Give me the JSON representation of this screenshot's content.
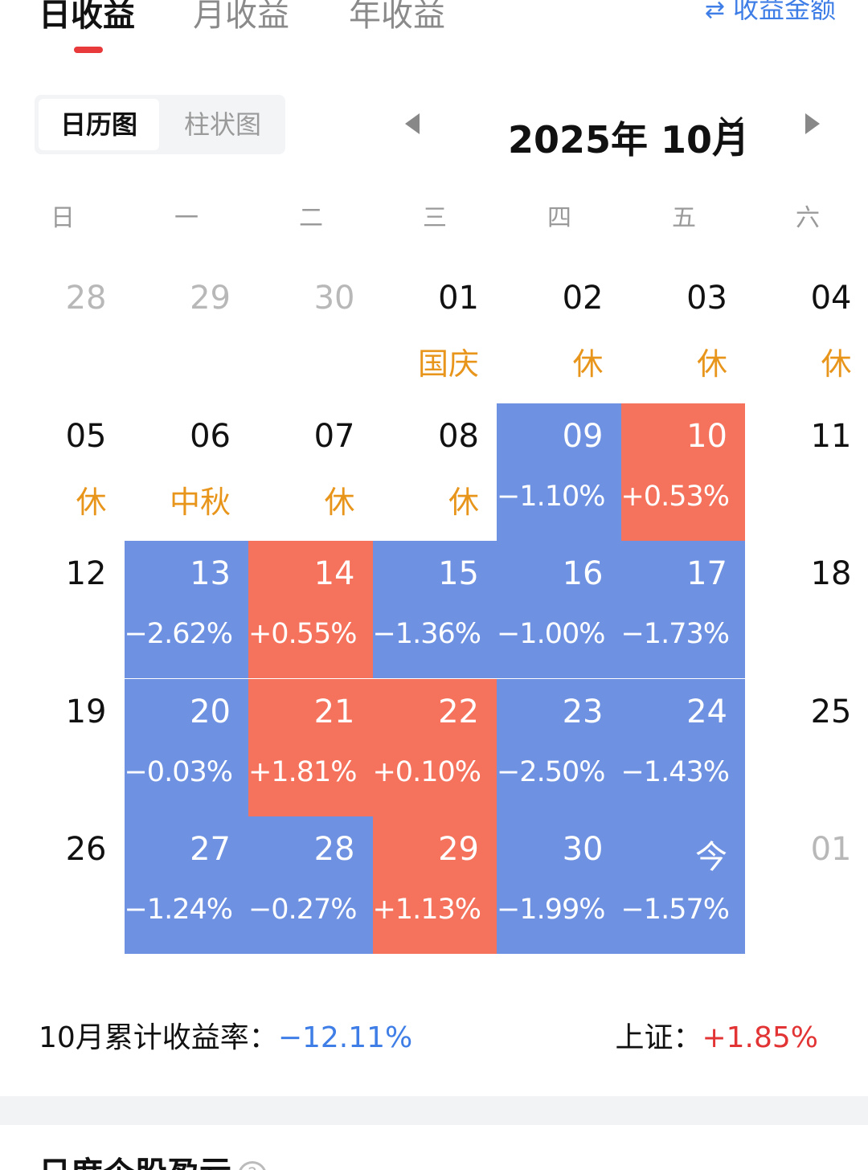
{
  "tabs": [
    {
      "label": "日收益",
      "active": true
    },
    {
      "label": "月收益",
      "active": false
    },
    {
      "label": "年收益",
      "active": false
    }
  ],
  "amount_toggle": {
    "icon": "swap-icon",
    "label": "收益金额"
  },
  "view_switch": {
    "calendar_label": "日历图",
    "bar_label": "柱状图"
  },
  "month_selector": {
    "label": "2025年 10月"
  },
  "weekdays": [
    "日",
    "一",
    "二",
    "三",
    "四",
    "五",
    "六"
  ],
  "colors": {
    "down": "#6e91e2",
    "up": "#f5735d",
    "holiday": "#e8951c",
    "accent_blue": "#3f7ee6",
    "accent_red": "#e23434"
  },
  "calendar": {
    "weeks": [
      [
        {
          "day": "28",
          "muted": true
        },
        {
          "day": "29",
          "muted": true
        },
        {
          "day": "30",
          "muted": true
        },
        {
          "day": "01",
          "note": "国庆",
          "type": "holiday"
        },
        {
          "day": "02",
          "note": "休",
          "type": "holiday"
        },
        {
          "day": "03",
          "note": "休",
          "type": "holiday"
        },
        {
          "day": "04",
          "note": "休",
          "type": "holiday"
        }
      ],
      [
        {
          "day": "05",
          "note": "休",
          "type": "holiday"
        },
        {
          "day": "06",
          "note": "中秋",
          "type": "holiday"
        },
        {
          "day": "07",
          "note": "休",
          "type": "holiday"
        },
        {
          "day": "08",
          "note": "休",
          "type": "holiday"
        },
        {
          "day": "09",
          "note": "−1.10%",
          "type": "down"
        },
        {
          "day": "10",
          "note": "+0.53%",
          "type": "up"
        },
        {
          "day": "11"
        }
      ],
      [
        {
          "day": "12"
        },
        {
          "day": "13",
          "note": "−2.62%",
          "type": "down"
        },
        {
          "day": "14",
          "note": "+0.55%",
          "type": "up"
        },
        {
          "day": "15",
          "note": "−1.36%",
          "type": "down"
        },
        {
          "day": "16",
          "note": "−1.00%",
          "type": "down"
        },
        {
          "day": "17",
          "note": "−1.73%",
          "type": "down"
        },
        {
          "day": "18"
        }
      ],
      [
        {
          "day": "19"
        },
        {
          "day": "20",
          "note": "−0.03%",
          "type": "down"
        },
        {
          "day": "21",
          "note": "+1.81%",
          "type": "up"
        },
        {
          "day": "22",
          "note": "+0.10%",
          "type": "up"
        },
        {
          "day": "23",
          "note": "−2.50%",
          "type": "down"
        },
        {
          "day": "24",
          "note": "−1.43%",
          "type": "down"
        },
        {
          "day": "25"
        }
      ],
      [
        {
          "day": "26"
        },
        {
          "day": "27",
          "note": "−1.24%",
          "type": "down"
        },
        {
          "day": "28",
          "note": "−0.27%",
          "type": "down"
        },
        {
          "day": "29",
          "note": "+1.13%",
          "type": "up"
        },
        {
          "day": "30",
          "note": "−1.99%",
          "type": "down"
        },
        {
          "day": "今",
          "note": "−1.57%",
          "type": "down"
        },
        {
          "day": "01",
          "muted": true
        }
      ]
    ]
  },
  "summary": {
    "cumulative_label": "10月累计收益率：",
    "cumulative_value": "−12.11%",
    "index_label": "上证：",
    "index_value": "+1.85%"
  },
  "next_section": {
    "title": "日度个股盈亏",
    "icon": "help-icon"
  }
}
